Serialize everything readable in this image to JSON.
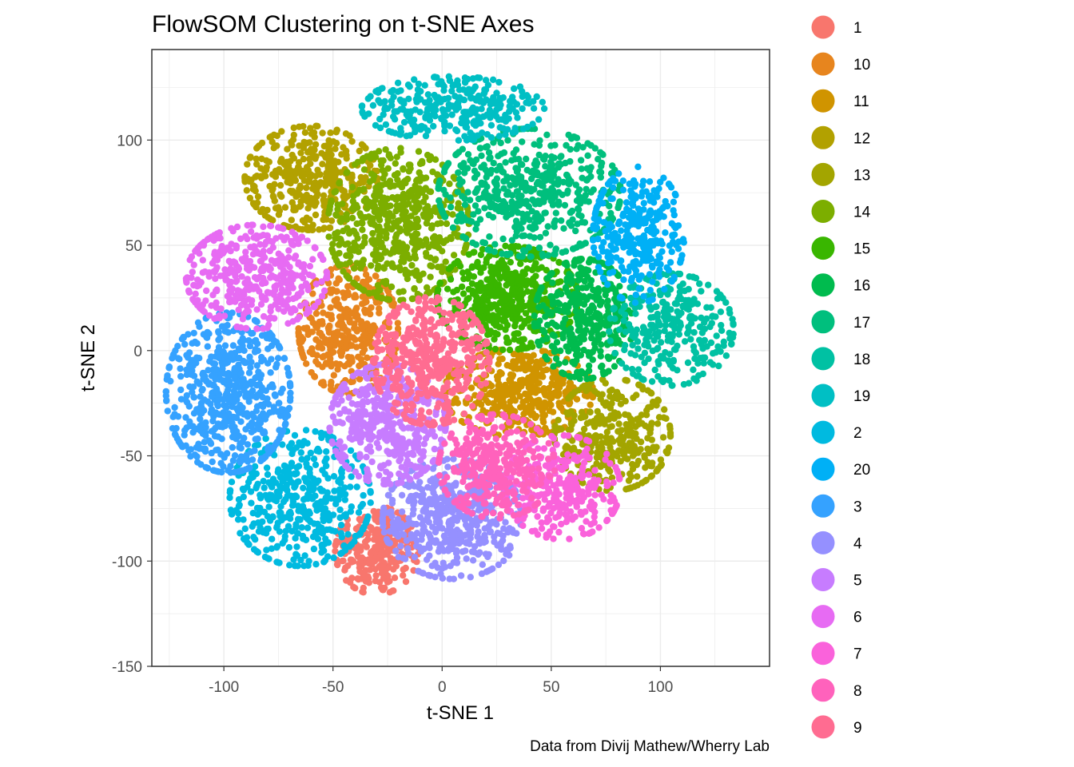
{
  "chart_data": {
    "type": "scatter",
    "title": "FlowSOM Clustering on t-SNE Axes",
    "xlabel": "t-SNE 1",
    "ylabel": "t-SNE 2",
    "caption": "Data from Divij Mathew/Wherry Lab",
    "xlim": [
      -133,
      150
    ],
    "ylim": [
      -150,
      143
    ],
    "x_ticks": [
      -100,
      -50,
      0,
      50,
      100
    ],
    "y_ticks": [
      -150,
      -100,
      -50,
      0,
      50,
      100
    ],
    "grid": true,
    "legend_position": "right",
    "series": [
      {
        "name": "1",
        "color": "#F8766D",
        "cx": -30,
        "cy": -95,
        "sx": 10,
        "sy": 11,
        "n": 260
      },
      {
        "name": "10",
        "color": "#E7851E",
        "cx": -43,
        "cy": 10,
        "sx": 12,
        "sy": 16,
        "n": 380
      },
      {
        "name": "11",
        "color": "#D09400",
        "cx": 35,
        "cy": -20,
        "sx": 18,
        "sy": 11,
        "n": 420
      },
      {
        "name": "12",
        "color": "#B2A100",
        "cx": -60,
        "cy": 82,
        "sx": 16,
        "sy": 13,
        "n": 380
      },
      {
        "name": "13",
        "color": "#A3A500",
        "cx": 78,
        "cy": -40,
        "sx": 14,
        "sy": 14,
        "n": 340
      },
      {
        "name": "14",
        "color": "#7CAE00",
        "cx": -20,
        "cy": 60,
        "sx": 17,
        "sy": 19,
        "n": 560
      },
      {
        "name": "15",
        "color": "#39B600",
        "cx": 30,
        "cy": 25,
        "sx": 17,
        "sy": 13,
        "n": 480
      },
      {
        "name": "16",
        "color": "#00BB4E",
        "cx": 65,
        "cy": 15,
        "sx": 12,
        "sy": 15,
        "n": 360
      },
      {
        "name": "17",
        "color": "#00BF7D",
        "cx": 40,
        "cy": 75,
        "sx": 22,
        "sy": 16,
        "n": 520
      },
      {
        "name": "18",
        "color": "#00C1A3",
        "cx": 105,
        "cy": 10,
        "sx": 15,
        "sy": 14,
        "n": 300
      },
      {
        "name": "19",
        "color": "#00BFC4",
        "cx": 5,
        "cy": 115,
        "sx": 22,
        "sy": 8,
        "n": 300
      },
      {
        "name": "2",
        "color": "#00BAE0",
        "cx": -65,
        "cy": -70,
        "sx": 17,
        "sy": 17,
        "n": 440
      },
      {
        "name": "20",
        "color": "#00B0F6",
        "cx": 90,
        "cy": 55,
        "sx": 11,
        "sy": 17,
        "n": 300
      },
      {
        "name": "3",
        "color": "#35A2FF",
        "cx": -98,
        "cy": -20,
        "sx": 15,
        "sy": 20,
        "n": 580
      },
      {
        "name": "4",
        "color": "#9590FF",
        "cx": 5,
        "cy": -80,
        "sx": 17,
        "sy": 15,
        "n": 480
      },
      {
        "name": "5",
        "color": "#C77CFF",
        "cx": -25,
        "cy": -35,
        "sx": 14,
        "sy": 15,
        "n": 420
      },
      {
        "name": "6",
        "color": "#E76BF3",
        "cx": -85,
        "cy": 35,
        "sx": 17,
        "sy": 13,
        "n": 400
      },
      {
        "name": "7",
        "color": "#FA62DB",
        "cx": 55,
        "cy": -65,
        "sx": 14,
        "sy": 13,
        "n": 300
      },
      {
        "name": "8",
        "color": "#FF62BC",
        "cx": 25,
        "cy": -55,
        "sx": 14,
        "sy": 13,
        "n": 320
      },
      {
        "name": "9",
        "color": "#FF6C91",
        "cx": -5,
        "cy": -5,
        "sx": 14,
        "sy": 16,
        "n": 440
      }
    ]
  }
}
